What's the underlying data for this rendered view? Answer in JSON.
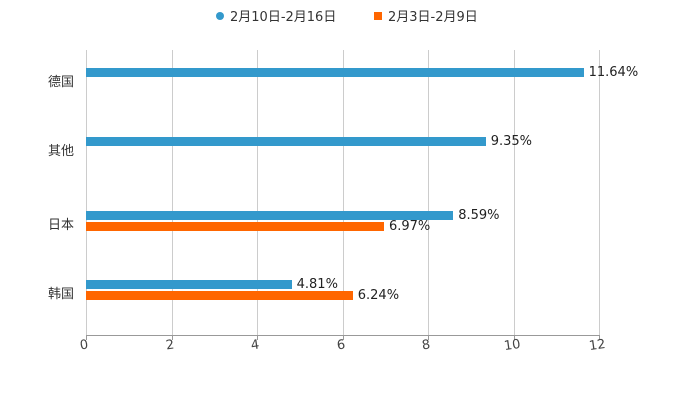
{
  "chart_data": {
    "type": "bar",
    "orientation": "horizontal",
    "title": "",
    "xlabel": "",
    "ylabel": "",
    "xlim": [
      0,
      12
    ],
    "xticks": [
      "0",
      "2",
      "4",
      "6",
      "8",
      "10",
      "12"
    ],
    "grid": true,
    "legend_position": "top",
    "categories": [
      "德国",
      "其他",
      "日本",
      "韩国"
    ],
    "series": [
      {
        "name": "2月10日-2月16日",
        "color": "#3399CC",
        "values": [
          11.64,
          9.35,
          8.59,
          4.81
        ],
        "labels": [
          "11.64%",
          "9.35%",
          "8.59%",
          "4.81%"
        ]
      },
      {
        "name": "2月3日-2月9日",
        "color": "#FF6600",
        "values": [
          null,
          null,
          6.97,
          6.24
        ],
        "labels": [
          "",
          "",
          "6.97%",
          "6.24%"
        ]
      }
    ]
  },
  "legend": {
    "items": [
      {
        "label": "2月10日-2月16日",
        "color": "#3399CC",
        "marker": "circle"
      },
      {
        "label": "2月3日-2月9日",
        "color": "#FF6600",
        "marker": "square"
      }
    ]
  }
}
